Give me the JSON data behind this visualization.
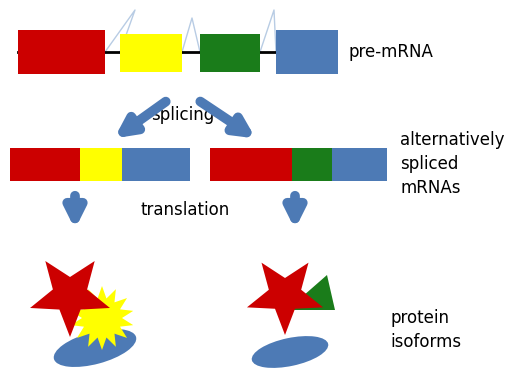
{
  "bg_color": "#ffffff",
  "arrow_color": "#4d7ab5",
  "line_color": "#000000",
  "intron_outline": "#b8cce4",
  "red": "#cc0000",
  "yellow": "#ffff00",
  "green": "#1a7c1a",
  "blue": "#4d7ab5",
  "title": "pre-mRNA",
  "label_splicing": "splicing",
  "label_translation": "translation",
  "label_alt_spliced": "alternatively\nspliced\nmRNAs",
  "label_protein": "protein\nisoforms",
  "fig_width": 5.3,
  "fig_height": 3.78,
  "dpi": 100
}
